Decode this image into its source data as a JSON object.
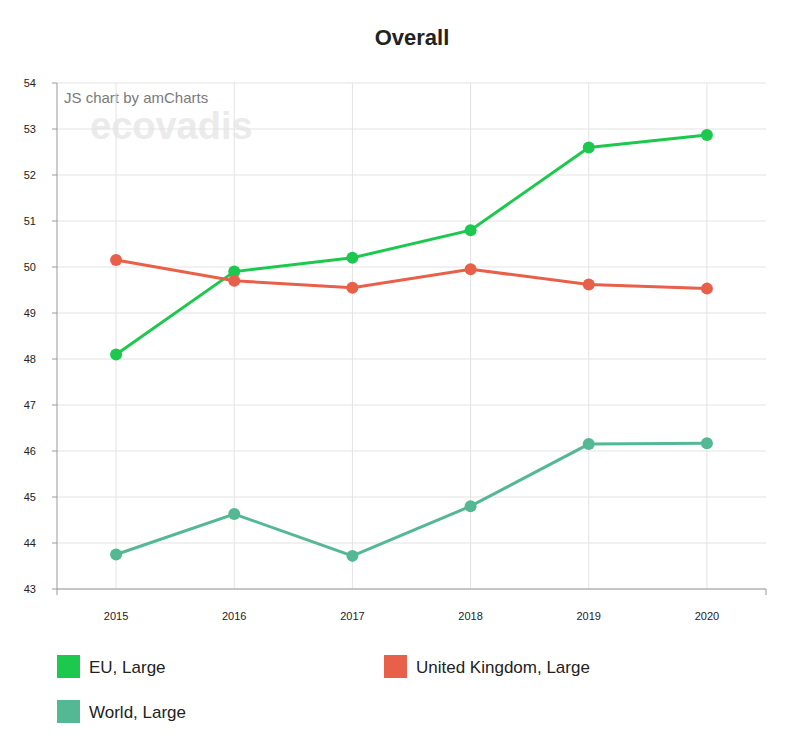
{
  "chart_data": {
    "type": "line",
    "title": "Overall",
    "annotations": [
      "JS chart by amCharts",
      "ecovadis"
    ],
    "categories": [
      "2015",
      "2016",
      "2017",
      "2018",
      "2019",
      "2020"
    ],
    "series": [
      {
        "name": "EU, Large",
        "color": "#1dc84f",
        "values": [
          48.1,
          49.9,
          50.2,
          50.8,
          52.6,
          52.87
        ]
      },
      {
        "name": "United Kingdom, Large",
        "color": "#e8604a",
        "values": [
          50.15,
          49.7,
          49.55,
          49.95,
          49.62,
          49.53
        ]
      },
      {
        "name": "World, Large",
        "color": "#55b894",
        "values": [
          43.75,
          44.63,
          43.72,
          44.8,
          46.15,
          46.17
        ]
      }
    ],
    "ylim": [
      43,
      54
    ],
    "yticks": [
      43,
      44,
      45,
      46,
      47,
      48,
      49,
      50,
      51,
      52,
      53,
      54
    ],
    "grid": true,
    "legend": "bottom",
    "marker": "circle"
  }
}
